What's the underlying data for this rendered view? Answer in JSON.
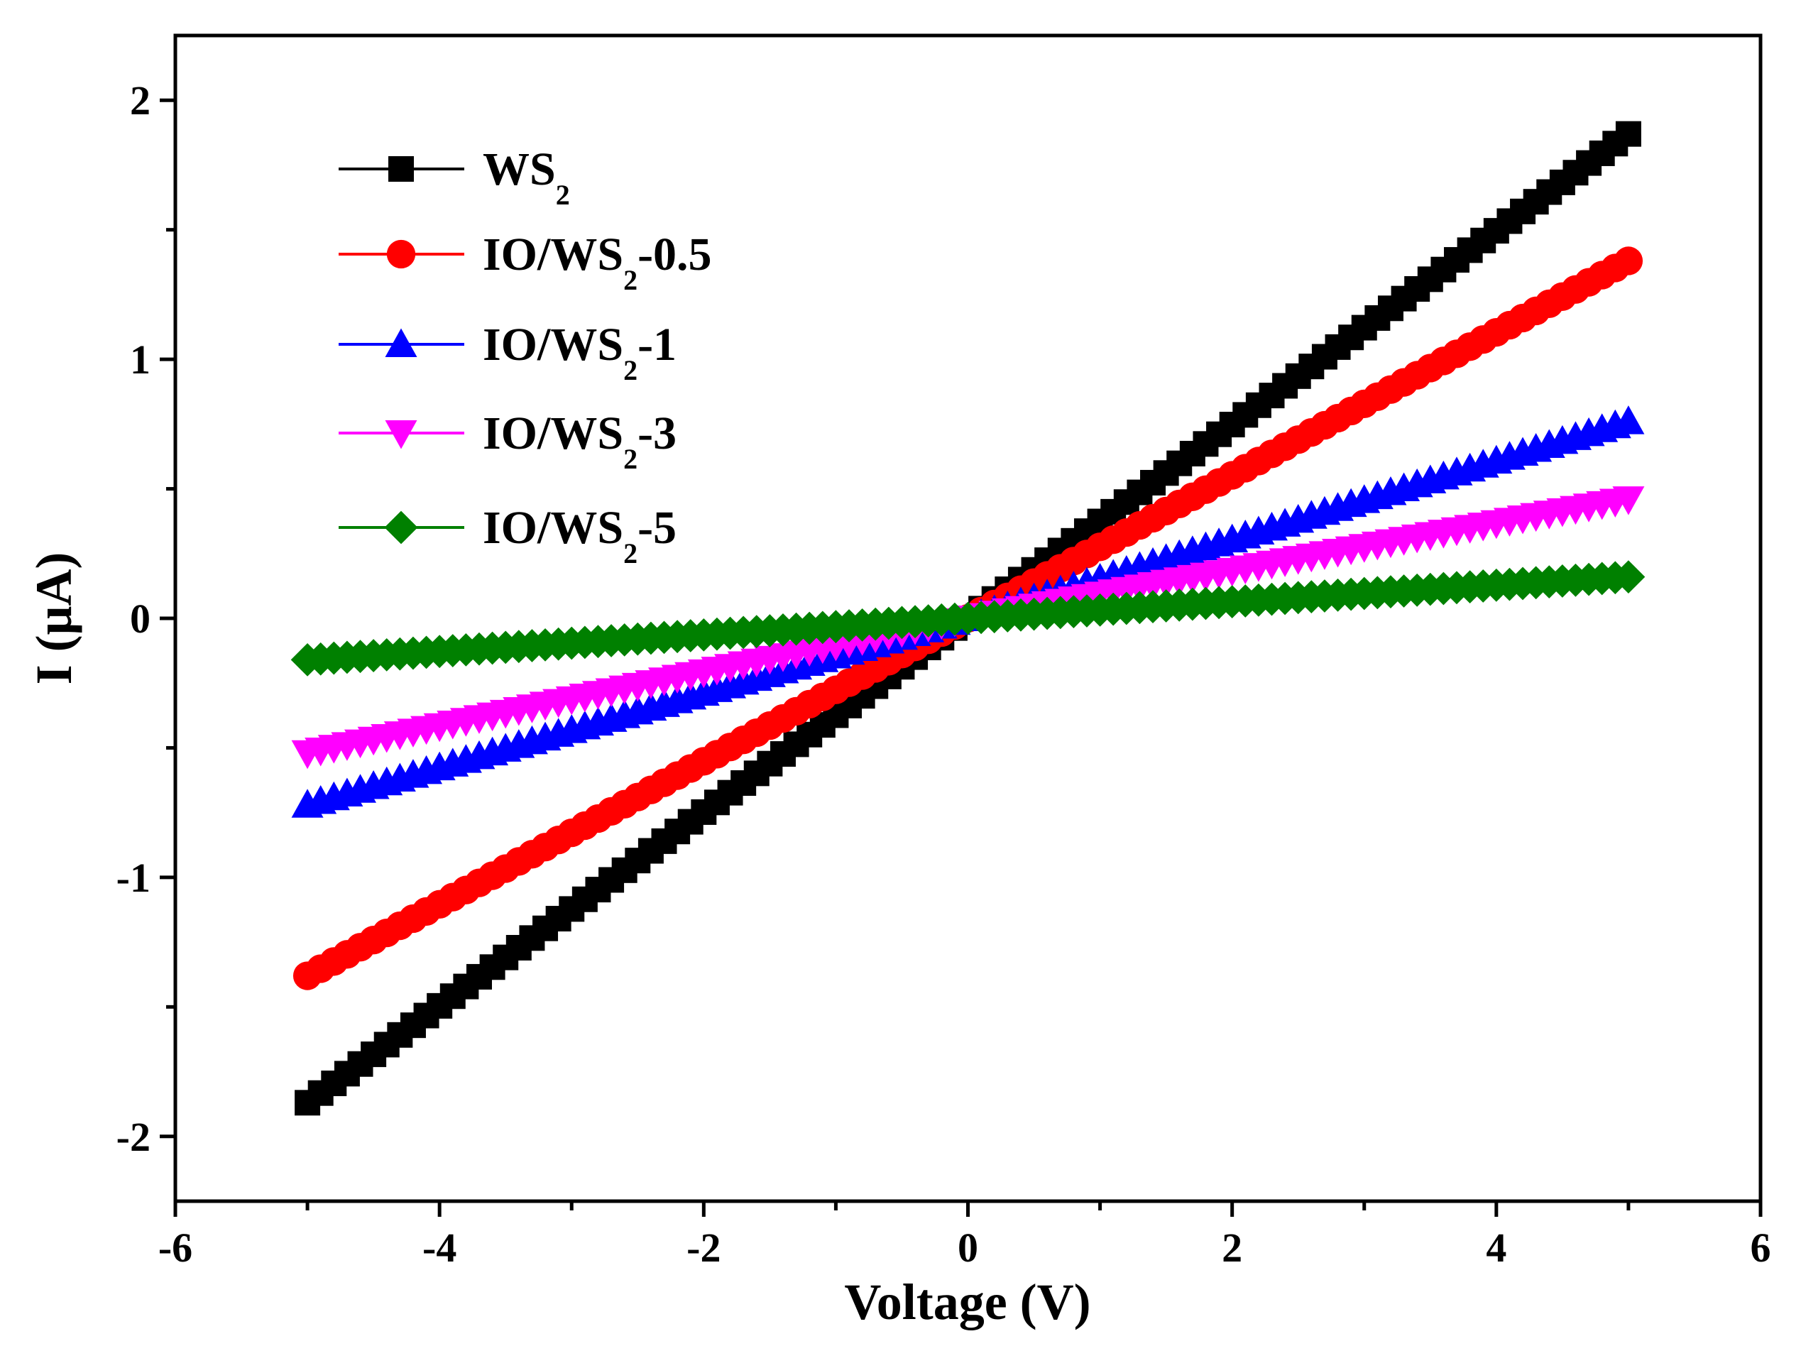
{
  "chart_data": {
    "type": "scatter",
    "title": "",
    "xlabel": "Voltage (V)",
    "ylabel": "I (μA)",
    "xlim": [
      -6,
      6
    ],
    "ylim": [
      -2.25,
      2.25
    ],
    "xticks": [
      -6,
      -4,
      -2,
      0,
      2,
      4,
      6
    ],
    "yticks": [
      -2,
      -1,
      0,
      1,
      2
    ],
    "xtick_labels": [
      "-6",
      "-4",
      "-2",
      "0",
      "2",
      "4",
      "6"
    ],
    "ytick_labels": [
      "-2",
      "-1",
      "0",
      "1",
      "2"
    ],
    "grid": false,
    "legend_position": "top-left",
    "x_range": [
      -5,
      5
    ],
    "points_per_series": 101,
    "series": [
      {
        "name": "WS2",
        "label_main": "WS",
        "label_sub": "2",
        "label_suffix": "",
        "marker": "square",
        "color": "#000000",
        "endpoints": [
          -1.87,
          1.87
        ]
      },
      {
        "name": "IO/WS2-0.5",
        "label_main": "IO/WS",
        "label_sub": "2",
        "label_suffix": "-0.5",
        "marker": "circle",
        "color": "#ff0000",
        "endpoints": [
          -1.38,
          1.38
        ]
      },
      {
        "name": "IO/WS2-1",
        "label_main": "IO/WS",
        "label_sub": "2",
        "label_suffix": "-1",
        "marker": "triangle-up",
        "color": "#0000ff",
        "endpoints": [
          -0.72,
          0.76
        ]
      },
      {
        "name": "IO/WS2-3",
        "label_main": "IO/WS",
        "label_sub": "2",
        "label_suffix": "-3",
        "marker": "triangle-down",
        "color": "#ff00ff",
        "endpoints": [
          -0.52,
          0.46
        ]
      },
      {
        "name": "IO/WS2-5",
        "label_main": "IO/WS",
        "label_sub": "2",
        "label_suffix": "-5",
        "marker": "diamond",
        "color": "#008000",
        "endpoints": [
          -0.16,
          0.16
        ]
      }
    ]
  }
}
